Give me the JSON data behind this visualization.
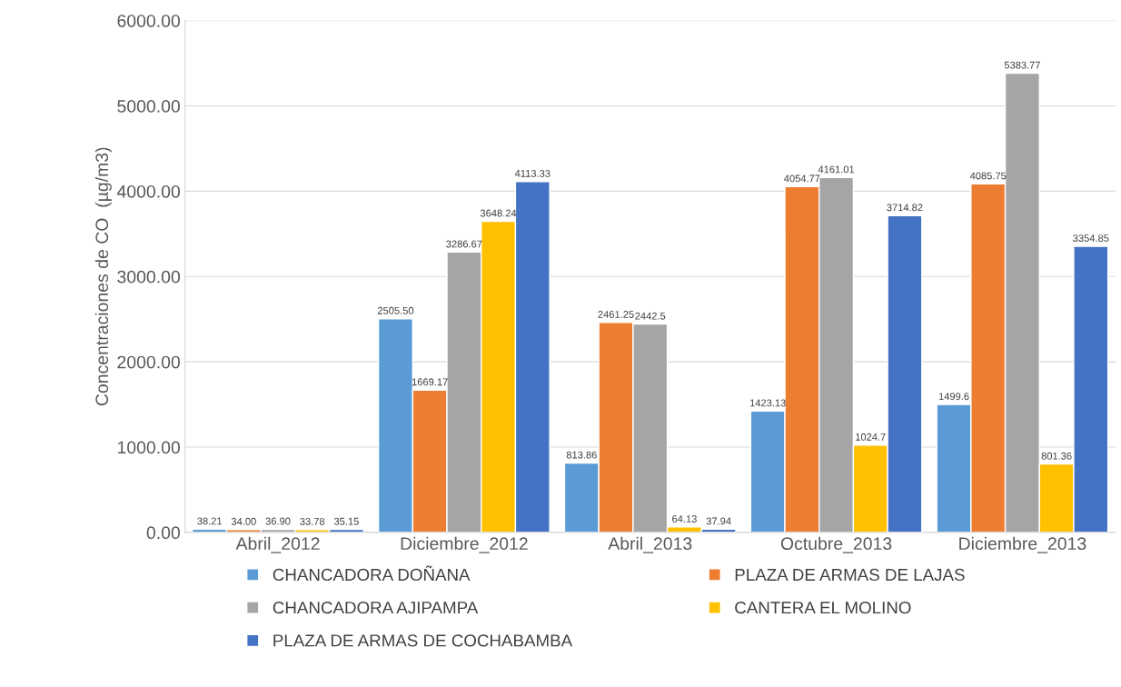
{
  "chart_data": {
    "type": "bar",
    "ylabel": "Concentraciones de CO  (µg/m3)",
    "categories": [
      "Abril_2012",
      "Diciembre_2012",
      "Abril_2013",
      "Octubre_2013",
      "Diciembre_2013"
    ],
    "series": [
      {
        "name": "CHANCADORA DOÑANA",
        "color": "#5b9bd5",
        "values": [
          38.21,
          2505.5,
          813.86,
          1423.13,
          1499.6
        ],
        "value_labels": [
          "38.21",
          "2505.50",
          "813.86",
          "1423.13",
          "1499.6"
        ]
      },
      {
        "name": "PLAZA DE ARMAS DE LAJAS",
        "color": "#ed7d31",
        "values": [
          34.0,
          1669.17,
          2461.25,
          4054.77,
          4085.75
        ],
        "value_labels": [
          "34.00",
          "1669.17",
          "2461.25",
          "4054.77",
          "4085.75"
        ]
      },
      {
        "name": "CHANCADORA AJIPAMPA",
        "color": "#a5a5a5",
        "values": [
          36.9,
          3286.67,
          2442.5,
          4161.01,
          5383.77
        ],
        "value_labels": [
          "36.90",
          "3286.67",
          "2442.5",
          "4161.01",
          "5383.77"
        ]
      },
      {
        "name": "CANTERA EL MOLINO",
        "color": "#ffc000",
        "values": [
          33.78,
          3648.24,
          64.13,
          1024.7,
          801.36
        ],
        "value_labels": [
          "33.78",
          "3648.24",
          "64.13",
          "1024.7",
          "801.36"
        ]
      },
      {
        "name": "PLAZA DE ARMAS DE COCHABAMBA",
        "color": "#4472c4",
        "values": [
          35.15,
          4113.33,
          37.94,
          3714.82,
          3354.85
        ],
        "value_labels": [
          "35.15",
          "4113.33",
          "37.94",
          "3714.82",
          "3354.85"
        ]
      }
    ],
    "ylim": [
      0,
      6000
    ],
    "yticks": [
      {
        "value": 0,
        "label": "0.00"
      },
      {
        "value": 1000,
        "label": "1000.00"
      },
      {
        "value": 2000,
        "label": "2000.00"
      },
      {
        "value": 3000,
        "label": "3000.00"
      },
      {
        "value": 4000,
        "label": "4000.00"
      },
      {
        "value": 5000,
        "label": "5000.00"
      },
      {
        "value": 6000,
        "label": "6000.00"
      }
    ],
    "grid": "y",
    "legend": "bottom"
  }
}
